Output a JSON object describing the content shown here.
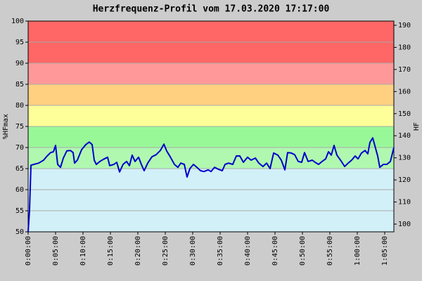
{
  "chart_data": {
    "type": "line",
    "title": "Herzfrequenz-Profil vom 17.03.2020 17:17:00",
    "ylabel": "%HFmax",
    "y2label": "HF",
    "color": "#0000cc",
    "x": [
      0,
      15,
      31,
      62,
      115,
      169,
      208,
      246,
      277,
      300,
      323,
      354,
      385,
      423,
      462,
      492,
      508,
      538,
      585,
      631,
      669,
      700,
      723,
      746,
      785,
      823,
      869,
      892,
      938,
      969,
      1000,
      1038,
      1077,
      1108,
      1138,
      1169,
      1208,
      1238,
      1269,
      1308,
      1354,
      1400,
      1446,
      1485,
      1515,
      1554,
      1600,
      1638,
      1669,
      1708,
      1738,
      1769,
      1808,
      1846,
      1885,
      1923,
      1969,
      2000,
      2038,
      2085,
      2123,
      2154,
      2192,
      2238,
      2277,
      2315,
      2354,
      2400,
      2438,
      2485,
      2523,
      2569,
      2608,
      2646,
      2685,
      2731,
      2769,
      2808,
      2838,
      2877,
      2915,
      2954,
      2992,
      3023,
      3062,
      3108,
      3138,
      3177,
      3215,
      3254,
      3285,
      3315,
      3346,
      3377,
      3423,
      3462,
      3500,
      3538,
      3577,
      3608,
      3646,
      3685,
      3715,
      3738,
      3769,
      3800,
      3823,
      3846,
      3885,
      3923,
      3962,
      4000
    ],
    "values": [
      50,
      55,
      65.8,
      66,
      66.3,
      67,
      68,
      68.8,
      69,
      70.5,
      66,
      65.3,
      67.5,
      69.2,
      69.3,
      68.8,
      66.3,
      67,
      69.5,
      70.7,
      71.3,
      70.7,
      67,
      66,
      66.7,
      67.2,
      67.7,
      65.7,
      66,
      66.5,
      64.2,
      66,
      66.7,
      65.7,
      68.2,
      66.7,
      67.7,
      66,
      64.5,
      66.3,
      67.8,
      68.3,
      69.3,
      70.8,
      69.2,
      67.8,
      66,
      65.3,
      66.3,
      66,
      63,
      65,
      66,
      65.3,
      64.5,
      64.3,
      64.7,
      64.3,
      65.3,
      64.8,
      64.5,
      66,
      66.3,
      66,
      68,
      68,
      66.5,
      67.7,
      67,
      67.5,
      66.3,
      65.5,
      66.3,
      65,
      68.7,
      68.2,
      67,
      64.7,
      68.8,
      68.7,
      68.3,
      66.7,
      66.5,
      68.8,
      66.7,
      67,
      66.5,
      66,
      66.7,
      67.3,
      69,
      68.2,
      70.5,
      68.2,
      66.8,
      65.5,
      66.3,
      67,
      68,
      67.3,
      68.7,
      69.3,
      68.5,
      71.2,
      72.3,
      69.8,
      68,
      65.3,
      66,
      66,
      66.7,
      70
    ],
    "xlim": [
      0,
      4000
    ],
    "xticks": [
      {
        "value": 0,
        "label": "0:00:00"
      },
      {
        "value": 300,
        "label": "0:05:00"
      },
      {
        "value": 600,
        "label": "0:10:00"
      },
      {
        "value": 900,
        "label": "0:15:00"
      },
      {
        "value": 1200,
        "label": "0:20:00"
      },
      {
        "value": 1500,
        "label": "0:25:00"
      },
      {
        "value": 1800,
        "label": "0:30:00"
      },
      {
        "value": 2100,
        "label": "0:35:00"
      },
      {
        "value": 2400,
        "label": "0:40:00"
      },
      {
        "value": 2700,
        "label": "0:45:00"
      },
      {
        "value": 3000,
        "label": "0:50:00"
      },
      {
        "value": 3300,
        "label": "0:55:00"
      },
      {
        "value": 3600,
        "label": "1:00:00"
      },
      {
        "value": 3900,
        "label": "1:05:00"
      }
    ],
    "ylim": [
      50,
      100
    ],
    "yticks": [
      50,
      55,
      60,
      65,
      70,
      75,
      80,
      85,
      90,
      95,
      100
    ],
    "y2lim": [
      96.5,
      191.9
    ],
    "y2ticks": [
      100,
      110,
      120,
      130,
      140,
      150,
      160,
      170,
      180,
      190
    ],
    "grid": true,
    "zones": [
      {
        "from": 50,
        "to": 65,
        "color": "#d2f0f8"
      },
      {
        "from": 65,
        "to": 70,
        "color": "#b0f8b0"
      },
      {
        "from": 70,
        "to": 75,
        "color": "#98f898"
      },
      {
        "from": 75,
        "to": 80,
        "color": "#ffff99"
      },
      {
        "from": 80,
        "to": 85,
        "color": "#ffd080"
      },
      {
        "from": 85,
        "to": 90,
        "color": "#ff9999"
      },
      {
        "from": 90,
        "to": 100,
        "color": "#ff6666"
      }
    ]
  }
}
